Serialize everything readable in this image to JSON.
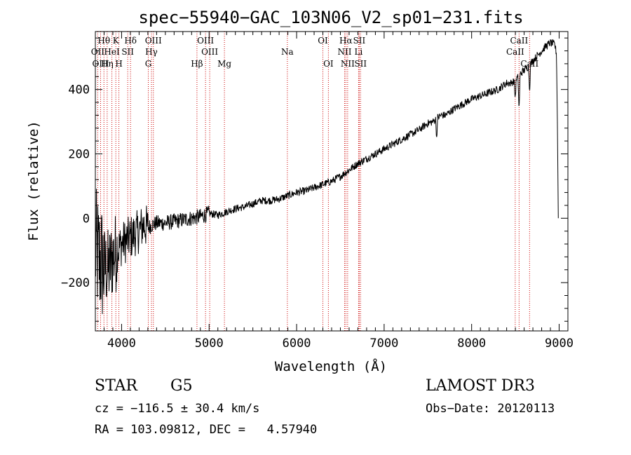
{
  "chart_data": {
    "type": "line",
    "title": "spec−55940−GAC_103N06_V2_sp01−231.fits",
    "xlabel": "Wavelength (Å)",
    "ylabel": "Flux (relative)",
    "xlim": [
      3700,
      9100
    ],
    "ylim": [
      -350,
      580
    ],
    "x_ticks": [
      4000,
      5000,
      6000,
      7000,
      8000,
      9000
    ],
    "x_tick_labels": [
      "4000",
      "5000",
      "6000",
      "7000",
      "8000",
      "9000"
    ],
    "y_ticks": [
      -200,
      0,
      200,
      400
    ],
    "y_tick_labels": [
      "−200",
      "0",
      "200",
      "400"
    ],
    "series": [
      {
        "name": "spectrum",
        "x": [
          3700,
          3750,
          3800,
          3850,
          3900,
          3950,
          4000,
          4050,
          4100,
          4150,
          4200,
          4250,
          4300,
          4350,
          4400,
          4500,
          4600,
          4700,
          4800,
          4900,
          5000,
          5100,
          5200,
          5300,
          5400,
          5500,
          5600,
          5700,
          5800,
          5900,
          6000,
          6100,
          6200,
          6300,
          6400,
          6500,
          6600,
          6700,
          6800,
          6900,
          7000,
          7100,
          7200,
          7300,
          7400,
          7500,
          7560,
          7600,
          7650,
          7700,
          7800,
          7900,
          8000,
          8100,
          8200,
          8300,
          8400,
          8450,
          8500,
          8540,
          8560,
          8600,
          8640,
          8660,
          8700,
          8750,
          8800,
          8850,
          8900,
          8950,
          8970,
          8980,
          8990
        ],
        "y": [
          -100,
          -130,
          -150,
          -160,
          -120,
          -100,
          -80,
          -70,
          -60,
          -50,
          -40,
          -20,
          -30,
          -20,
          -15,
          -15,
          -10,
          -5,
          0,
          5,
          15,
          10,
          20,
          30,
          35,
          45,
          55,
          55,
          60,
          70,
          80,
          85,
          95,
          105,
          115,
          130,
          150,
          170,
          185,
          200,
          215,
          230,
          245,
          260,
          275,
          295,
          300,
          310,
          320,
          320,
          340,
          355,
          370,
          380,
          390,
          400,
          420,
          420,
          430,
          440,
          450,
          460,
          470,
          475,
          490,
          505,
          520,
          535,
          545,
          540,
          510,
          300,
          0
        ]
      }
    ],
    "noise_amplitude": [
      {
        "x_max": 3800,
        "amp": 200
      },
      {
        "x_max": 3950,
        "amp": 130
      },
      {
        "x_max": 4300,
        "amp": 70
      },
      {
        "x_max": 5000,
        "amp": 25
      },
      {
        "x_max": 9100,
        "amp": 12
      }
    ],
    "absorption_dips": [
      {
        "x": 7600,
        "depth": 60
      },
      {
        "x": 8498,
        "depth": 60
      },
      {
        "x": 8542,
        "depth": 110
      },
      {
        "x": 8662,
        "depth": 80
      }
    ],
    "lines": [
      {
        "label": "Hθ",
        "x": 3798,
        "row": 0
      },
      {
        "label": "OII",
        "x": 3727,
        "row": 1
      },
      {
        "label": "OIII",
        "x": 3760,
        "row": 2
      },
      {
        "label": "Hη",
        "x": 3835,
        "row": 2
      },
      {
        "label": "K",
        "x": 3934,
        "row": 0
      },
      {
        "label": "HeI",
        "x": 3889,
        "row": 1
      },
      {
        "label": "SII",
        "x": 4070,
        "row": 1
      },
      {
        "label": "H",
        "x": 3969,
        "row": 2
      },
      {
        "label": "Hδ",
        "x": 4102,
        "row": 0
      },
      {
        "label": "OIII",
        "x": 4363,
        "row": 0
      },
      {
        "label": "Hγ",
        "x": 4341,
        "row": 1
      },
      {
        "label": "G",
        "x": 4305,
        "row": 2
      },
      {
        "label": "Hβ",
        "x": 4861,
        "row": 2
      },
      {
        "label": "OIII",
        "x": 4959,
        "row": 0
      },
      {
        "label": "OIII",
        "x": 5007,
        "row": 1
      },
      {
        "label": "Mg",
        "x": 5175,
        "row": 2
      },
      {
        "label": "Na",
        "x": 5894,
        "row": 1
      },
      {
        "label": "OI",
        "x": 6300,
        "row": 0
      },
      {
        "label": "OI",
        "x": 6363,
        "row": 2
      },
      {
        "label": "Hα",
        "x": 6563,
        "row": 0
      },
      {
        "label": "NII",
        "x": 6548,
        "row": 1
      },
      {
        "label": "NII",
        "x": 6583,
        "row": 2
      },
      {
        "label": "SII",
        "x": 6716,
        "row": 0
      },
      {
        "label": "Li",
        "x": 6708,
        "row": 1
      },
      {
        "label": "SII",
        "x": 6731,
        "row": 2
      },
      {
        "label": "CaII",
        "x": 8542,
        "row": 0
      },
      {
        "label": "CaII",
        "x": 8498,
        "row": 1
      },
      {
        "label": "CaII",
        "x": 8662,
        "row": 2
      }
    ]
  },
  "info": {
    "class": "STAR",
    "subclass": "G5",
    "survey": "LAMOST DR3",
    "cz": "cz = −116.5 ± 30.4 km/s",
    "obs_date": "Obs−Date: 20120113",
    "coords": "RA = 103.09812, DEC =   4.57940"
  },
  "colors": {
    "line_marker": "#cc0000",
    "spectrum": "#000000"
  }
}
